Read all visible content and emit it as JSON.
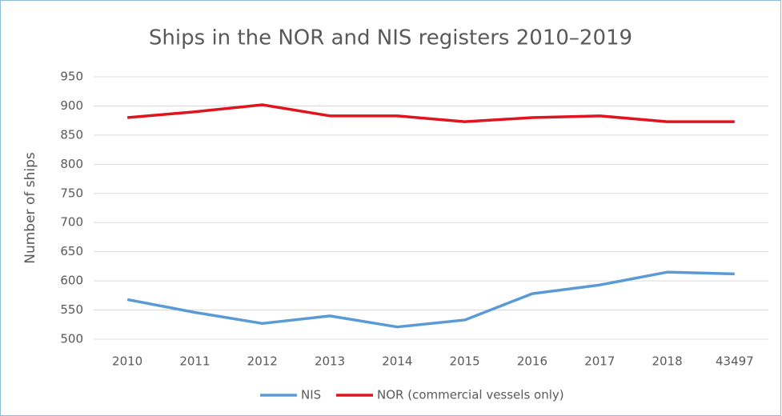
{
  "chart_data": {
    "type": "line",
    "title": "Ships in the NOR and NIS registers 2010–2019",
    "y_label": "Number of ships",
    "categories": [
      "2010",
      "2011",
      "2012",
      "2013",
      "2014",
      "2015",
      "2016",
      "2017",
      "2018",
      "43497"
    ],
    "series": [
      {
        "name": "NIS",
        "color": "#5b9bd5",
        "values": [
          568,
          546,
          527,
          540,
          521,
          533,
          578,
          593,
          615,
          612
        ]
      },
      {
        "name": "NOR (commercial vessels only)",
        "color": "#e0141e",
        "values": [
          880,
          890,
          902,
          883,
          883,
          873,
          880,
          883,
          873,
          873
        ]
      }
    ],
    "ylim": [
      500,
      950
    ],
    "yticks": [
      500,
      550,
      600,
      650,
      700,
      750,
      800,
      850,
      900,
      950
    ],
    "grid": true,
    "legend": "bottom"
  }
}
